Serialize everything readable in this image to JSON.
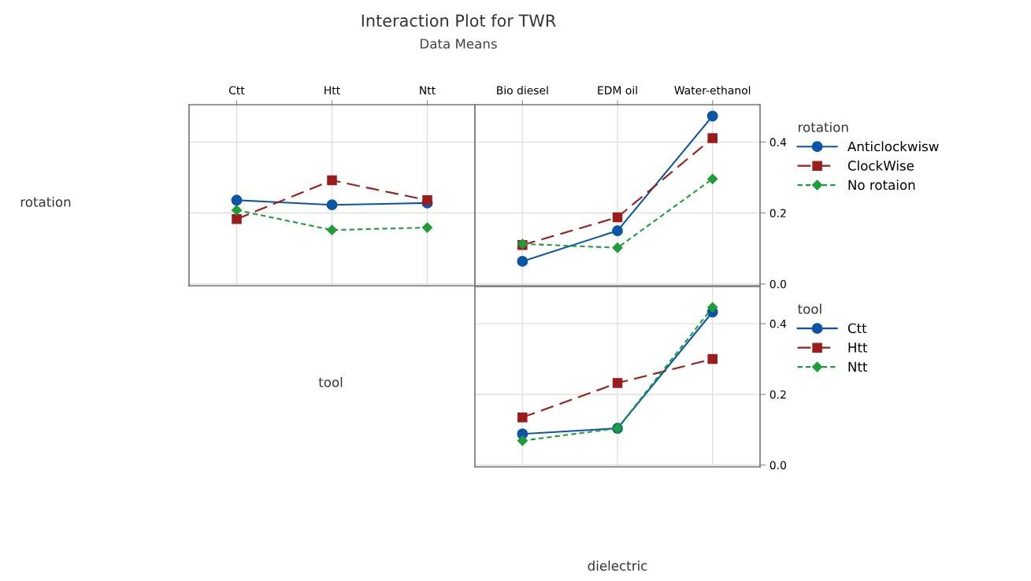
{
  "chart_data": [
    {
      "type": "line",
      "title": "Interaction Plot for TWR",
      "subtitle": "Data Means",
      "ylabel": "rotation",
      "categories": [
        "Ctt",
        "Htt",
        "Ntt"
      ],
      "ylim": [
        -0.005,
        0.505
      ],
      "yticks": [
        0.0,
        0.2,
        0.4
      ],
      "tick_labels": "x",
      "grid": true,
      "legend": false,
      "series": [
        {
          "color": "#0b55a8",
          "marker": "circle",
          "line_style": "solid",
          "values": [
            0.236,
            0.223,
            0.228
          ]
        },
        {
          "color": "#9b1c1c",
          "marker": "square",
          "line_style": "dashed",
          "values": [
            0.183,
            0.292,
            0.236
          ]
        },
        {
          "color": "#1e9e3a",
          "marker": "diamond",
          "line_style": "dotted",
          "values": [
            0.208,
            0.152,
            0.159
          ]
        }
      ]
    },
    {
      "type": "line",
      "categories": [
        "Bio diesel",
        "EDM oil",
        "Water-ethanol"
      ],
      "ylim": [
        -0.005,
        0.505
      ],
      "yticks": [
        {
          "value": 0.0,
          "label": "0.0"
        },
        0.2,
        0.4
      ],
      "grid": true,
      "legend": "right",
      "legend_title": "rotation",
      "series": [
        {
          "name": "Anticlockwisw",
          "color": "#0b55a8",
          "marker": "circle",
          "line_style": "solid",
          "values": [
            0.064,
            0.15,
            0.473
          ]
        },
        {
          "name": "ClockWise",
          "color": "#9b1c1c",
          "marker": "square",
          "line_style": "dashed",
          "values": [
            0.11,
            0.188,
            0.411
          ]
        },
        {
          "name": "No rotaion",
          "color": "#1e9e3a",
          "marker": "diamond",
          "line_style": "dotted",
          "values": [
            0.113,
            0.102,
            0.296
          ]
        }
      ]
    },
    {
      "type": "line",
      "ylabel": "tool",
      "xlabel": "dielectric",
      "categories": [
        null,
        null,
        null
      ],
      "ylim": [
        -0.005,
        0.505
      ],
      "yticks": [
        {
          "value": 0.0,
          "label": "0.0"
        },
        0.2,
        0.4
      ],
      "tick_labels": "y",
      "grid": true,
      "legend": "right",
      "legend_title": "tool",
      "series": [
        {
          "name": "Ctt",
          "color": "#0b55a8",
          "marker": "circle",
          "line_style": "solid",
          "values": [
            0.088,
            0.104,
            0.433
          ]
        },
        {
          "name": "Htt",
          "color": "#9b1c1c",
          "marker": "square",
          "line_style": "dashed",
          "values": [
            0.135,
            0.232,
            0.3
          ]
        },
        {
          "name": "Ntt",
          "color": "#1e9e3a",
          "marker": "diamond",
          "line_style": "dotted",
          "values": [
            0.069,
            0.104,
            0.446
          ]
        }
      ]
    }
  ]
}
